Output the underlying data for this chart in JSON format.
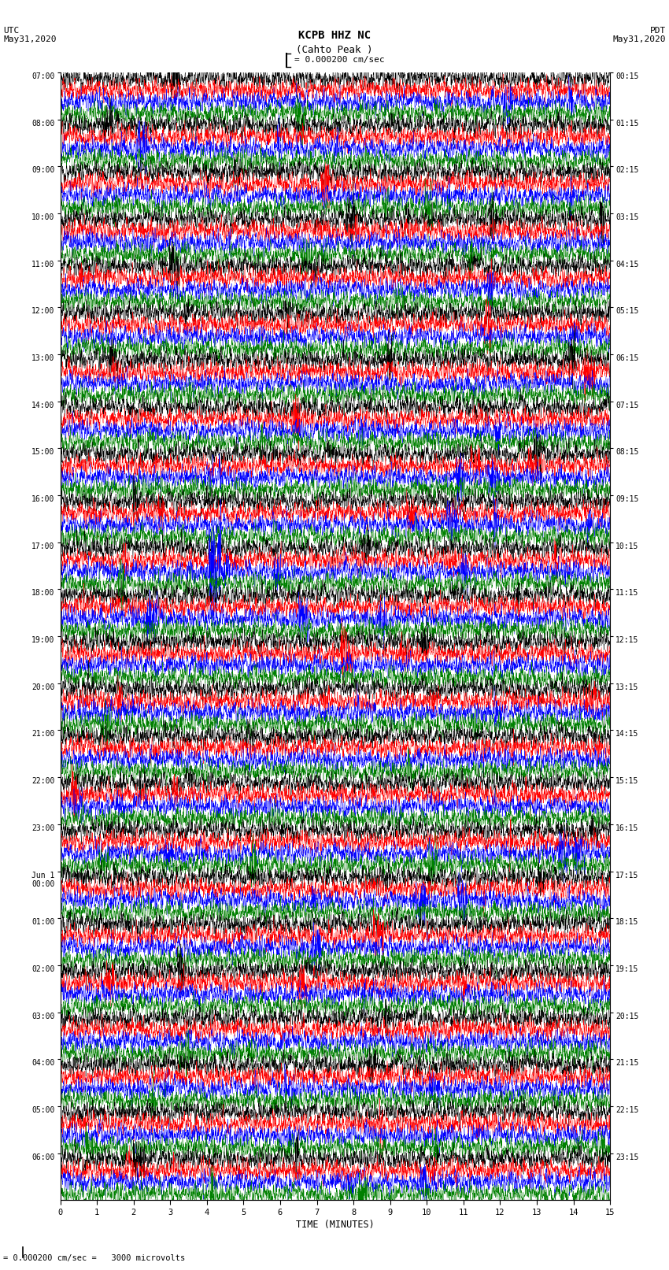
{
  "title_line1": "KCPB HHZ NC",
  "title_line2": "(Cahto Peak )",
  "scale_label": "= 0.000200 cm/sec",
  "footer_text": "= 0.000200 cm/sec =   3000 microvolts",
  "left_header_line1": "UTC",
  "left_header_line2": "May31,2020",
  "right_header_line1": "PDT",
  "right_header_line2": "May31,2020",
  "xlabel": "TIME (MINUTES)",
  "xtick_vals": [
    0,
    1,
    2,
    3,
    4,
    5,
    6,
    7,
    8,
    9,
    10,
    11,
    12,
    13,
    14,
    15
  ],
  "trace_colors": [
    "black",
    "red",
    "blue",
    "green"
  ],
  "n_rows": 24,
  "traces_per_row": 4,
  "fig_width": 8.5,
  "fig_height": 16.13,
  "dpi": 100,
  "utc_labels": [
    "07:00",
    "08:00",
    "09:00",
    "10:00",
    "11:00",
    "12:00",
    "13:00",
    "14:00",
    "15:00",
    "16:00",
    "17:00",
    "18:00",
    "19:00",
    "20:00",
    "21:00",
    "22:00",
    "23:00",
    "Jun 1\n00:00",
    "01:00",
    "02:00",
    "03:00",
    "04:00",
    "05:00",
    "06:00"
  ],
  "pdt_labels": [
    "00:15",
    "01:15",
    "02:15",
    "03:15",
    "04:15",
    "05:15",
    "06:15",
    "07:15",
    "08:15",
    "09:15",
    "10:15",
    "11:15",
    "12:15",
    "13:15",
    "14:15",
    "15:15",
    "16:15",
    "17:15",
    "18:15",
    "19:15",
    "20:15",
    "21:15",
    "22:15",
    "23:15"
  ],
  "bg_color": "#ffffff",
  "trace_linewidth": 0.3,
  "amp_scale": 0.42,
  "special_spike_row": 10,
  "special_spike_col": 2,
  "n_points": 3600
}
